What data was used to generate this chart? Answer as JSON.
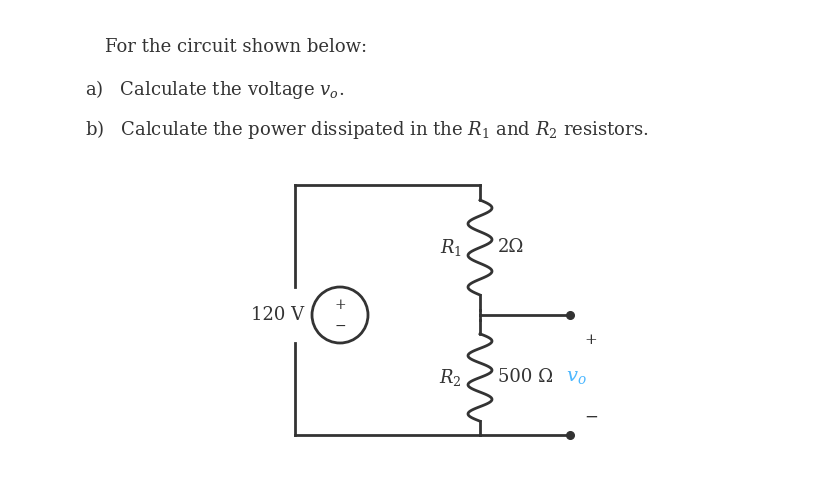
{
  "bg_color": "#ffffff",
  "text_color": "#000000",
  "cyan_color": "#4db8ff",
  "line_color": "#333333",
  "title_line": "For the circuit shown below:",
  "source_label": "120 V",
  "r1_val": "2Ω",
  "r2_val": "500 Ω",
  "plus_sign": "+",
  "minus_sign": "−",
  "figsize": [
    8.3,
    5.0
  ],
  "dpi": 100,
  "font_size": 13
}
